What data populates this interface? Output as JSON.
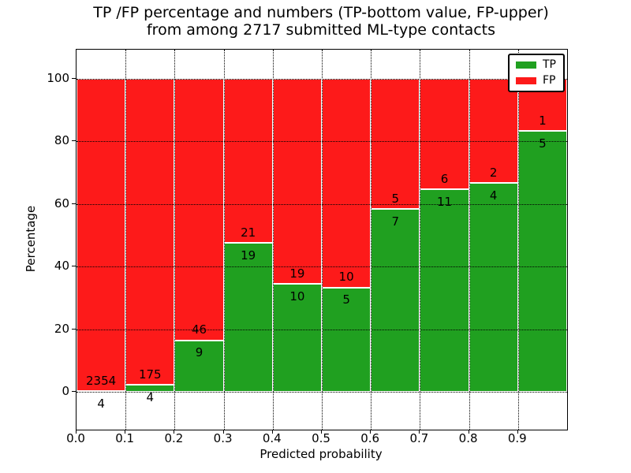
{
  "figure": {
    "title_line1": "TP /FP percentage and numbers (TP-bottom value, FP-upper)",
    "title_line2": "from among 2717 submitted ML-type contacts"
  },
  "chart_data": {
    "type": "bar",
    "subtype": "stacked-percentage-histogram",
    "title": "TP /FP percentage and numbers (TP-bottom value, FP-upper) from among 2717 submitted ML-type contacts",
    "xlabel": "Predicted probability",
    "ylabel": "Percentage",
    "total_contacts": 2717,
    "bin_edges": [
      0.0,
      0.1,
      0.2,
      0.3,
      0.4,
      0.5,
      0.6,
      0.7,
      0.8,
      0.9,
      1.0
    ],
    "x_tick_labels": [
      "0.0",
      "0.1",
      "0.2",
      "0.3",
      "0.4",
      "0.5",
      "0.6",
      "0.7",
      "0.8",
      "0.9"
    ],
    "y_ticks": [
      0,
      20,
      40,
      60,
      80,
      100
    ],
    "ylim": [
      -12.1,
      109.3
    ],
    "xlim": [
      0.0,
      1.0
    ],
    "grid": true,
    "legend": {
      "position": "upper right",
      "entries": [
        "TP",
        "FP"
      ]
    },
    "series": [
      {
        "name": "TP",
        "color": "#20a020",
        "counts": [
          4,
          4,
          9,
          19,
          10,
          5,
          7,
          11,
          4,
          5
        ]
      },
      {
        "name": "FP",
        "color": "#fd1a1a",
        "counts": [
          2354,
          175,
          46,
          21,
          19,
          10,
          5,
          6,
          2,
          1
        ]
      }
    ],
    "tp_percent": [
      0.17,
      2.23,
      16.36,
      47.5,
      34.48,
      33.33,
      58.33,
      64.71,
      66.67,
      83.33
    ]
  }
}
